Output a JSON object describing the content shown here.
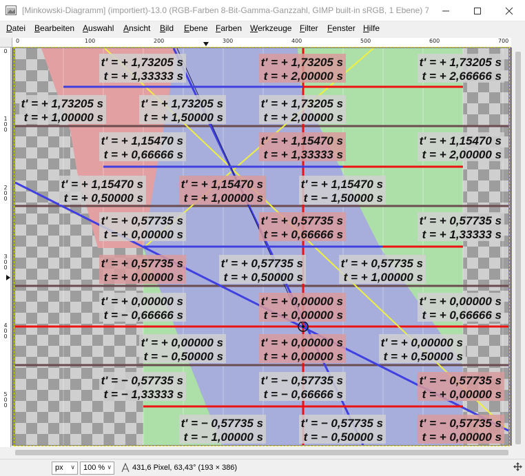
{
  "window": {
    "title": "[Minkowski-Diagramm] (importiert)-13.0 (RGB-Farben 8-Bit-Gamma-Ganzzahl, GIMP built-in sRGB, 1 Ebene) 7...",
    "minimize_icon": "minimize-icon",
    "maximize_icon": "maximize-icon",
    "close_icon": "close-icon"
  },
  "menu": [
    {
      "label": "Datei"
    },
    {
      "label": "Bearbeiten"
    },
    {
      "label": "Auswahl"
    },
    {
      "label": "Ansicht"
    },
    {
      "label": "Bild"
    },
    {
      "label": "Ebene"
    },
    {
      "label": "Farben"
    },
    {
      "label": "Werkzeuge"
    },
    {
      "label": "Filter"
    },
    {
      "label": "Fenster"
    },
    {
      "label": "Hilfe"
    }
  ],
  "hruler": {
    "labels": [
      "0",
      "100",
      "200",
      "300",
      "400",
      "500",
      "600",
      "700"
    ]
  },
  "vruler": {
    "labels": [
      "0",
      "100",
      "200",
      "300",
      "400",
      "500"
    ]
  },
  "diagram": {
    "colors": {
      "red_region": "#e3a0a2",
      "blue_region": "#a8aedb",
      "green_region": "#ade0a8",
      "yellow_line": "#f0f040",
      "blue_line": "#4040e0",
      "red_line": "#ee1111",
      "label_box": "#d0d0d0",
      "label_box_red": "#d89a9c"
    },
    "labels": [
      {
        "tp": "t' = + 1,73205 s",
        "t": "t = + 1,33333 s"
      },
      {
        "tp": "t' = + 1,73205 s",
        "t": "t = + 2,00000 s"
      },
      {
        "tp": "t' = + 1,73205 s",
        "t": "t = + 2,66666 s"
      },
      {
        "tp": "t' = + 1,73205 s",
        "t": "t = + 1,00000 s"
      },
      {
        "tp": "t' = + 1,73205 s",
        "t": "t = + 1,50000 s"
      },
      {
        "tp": "t' = + 1,73205 s",
        "t": "t = + 2,00000 s"
      },
      {
        "tp": "t' = + 1,15470 s",
        "t": "t = + 0,66666 s"
      },
      {
        "tp": "t' = + 1,15470 s",
        "t": "t = + 1,33333 s"
      },
      {
        "tp": "t' = + 1,15470 s",
        "t": "t = + 2,00000 s"
      },
      {
        "tp": "t' = + 1,15470 s",
        "t": "t = + 0,50000 s"
      },
      {
        "tp": "t' = + 1,15470 s",
        "t": "t = + 1,00000 s"
      },
      {
        "tp": "t' = + 1,15470 s",
        "t": "t = − 1,50000 s"
      },
      {
        "tp": "t' = + 0,57735 s",
        "t": "t = + 0,00000 s"
      },
      {
        "tp": "t' = + 0,57735 s",
        "t": "t = + 0,66666 s"
      },
      {
        "tp": "t' = + 0,57735 s",
        "t": "t = + 1,33333 s"
      },
      {
        "tp": "t' = + 0,57735 s",
        "t": "t = + 0,00000 s"
      },
      {
        "tp": "t' = + 0,57735 s",
        "t": "t = + 0,50000 s"
      },
      {
        "tp": "t' = + 0,57735 s",
        "t": "t = + 1,00000 s"
      },
      {
        "tp": "t' = + 0,00000 s",
        "t": "t = − 0,66666 s"
      },
      {
        "tp": "t' = + 0,00000 s",
        "t": "t = + 0,00000 s"
      },
      {
        "tp": "t' = + 0,00000 s",
        "t": "t = + 0,66666 s"
      },
      {
        "tp": "t' = + 0,00000 s",
        "t": "t = − 0,50000 s"
      },
      {
        "tp": "t' = + 0,00000 s",
        "t": "t = + 0,00000 s"
      },
      {
        "tp": "t' = + 0,00000 s",
        "t": "t = + 0,50000 s"
      },
      {
        "tp": "t' = − 0,57735 s",
        "t": "t = − 1,33333 s"
      },
      {
        "tp": "t' = − 0,57735 s",
        "t": "t = − 0,66666 s"
      },
      {
        "tp": "t' = − 0,57735 s",
        "t": "t = + 0,00000 s"
      },
      {
        "tp": "t' = − 0,57735 s",
        "t": "t = − 1,00000 s"
      },
      {
        "tp": "t' = − 0,57735 s",
        "t": "t = − 0,50000 s"
      },
      {
        "tp": "t' = − 0,57735 s",
        "t": "t = + 0,00000 s"
      }
    ]
  },
  "status": {
    "unit": "px",
    "zoom": "100 %",
    "measure_icon": "measure-tool-icon",
    "text": "431,6 Pixel, 63,43° (193 × 386)",
    "nav_icon": "navigate-icon"
  }
}
